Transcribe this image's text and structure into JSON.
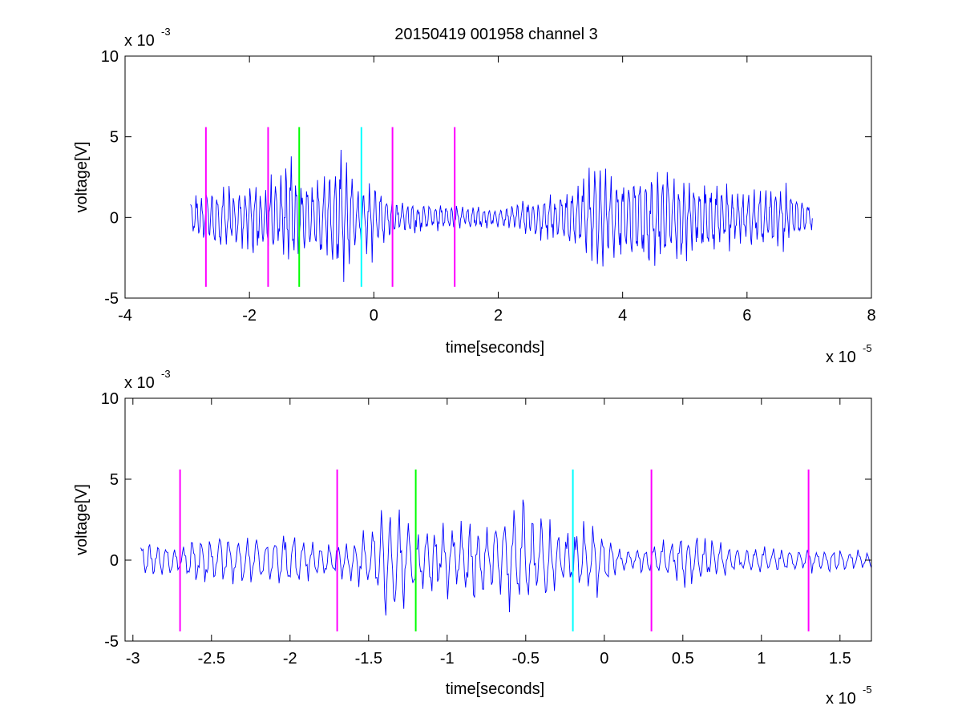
{
  "figure": {
    "title": "20150419 001958 channel 3",
    "colors": {
      "trace": "#0000ff",
      "magenta": "#ff00ff",
      "green": "#00ff00",
      "cyan": "#00ffff",
      "axes": "#000000",
      "background": "#ffffff"
    }
  },
  "chart_data": [
    {
      "type": "line",
      "title": "20150419 001958 channel 3",
      "xlabel": "time[seconds]",
      "ylabel": "voltage[V]",
      "x_multiplier": "x 10",
      "x_exponent": "-5",
      "y_multiplier": "x 10",
      "y_exponent": "-3",
      "xlim": [
        -4,
        8
      ],
      "ylim": [
        -5,
        10
      ],
      "x_ticks": [
        -4,
        -2,
        0,
        2,
        4,
        6,
        8
      ],
      "x_tick_labels": [
        "-4",
        "-2",
        "0",
        "2",
        "4",
        "6",
        "8"
      ],
      "y_ticks": [
        -5,
        0,
        5,
        10
      ],
      "y_tick_labels": [
        "-5",
        "0",
        "5",
        "10"
      ],
      "grid": false,
      "series": [
        {
          "color": "#0000ff",
          "x_range": [
            -2.95,
            7.05
          ],
          "envelope_points": [
            [
              -2.95,
              1.5
            ],
            [
              -2.7,
              2.0
            ],
            [
              -2.5,
              2.2
            ],
            [
              -2.2,
              2.2
            ],
            [
              -2.0,
              2.3
            ],
            [
              -1.8,
              2.5
            ],
            [
              -1.5,
              3.0
            ],
            [
              -1.35,
              5.0
            ],
            [
              -1.2,
              2.5
            ],
            [
              -0.9,
              2.8
            ],
            [
              -0.7,
              3.2
            ],
            [
              -0.5,
              4.4
            ],
            [
              -0.3,
              2.5
            ],
            [
              -0.2,
              2.2
            ],
            [
              0.0,
              3.0
            ],
            [
              0.2,
              1.5
            ],
            [
              0.5,
              1.2
            ],
            [
              1.0,
              1.0
            ],
            [
              1.5,
              0.8
            ],
            [
              2.0,
              0.8
            ],
            [
              2.5,
              1.3
            ],
            [
              3.0,
              1.8
            ],
            [
              3.3,
              2.5
            ],
            [
              3.6,
              4.1
            ],
            [
              4.0,
              3.0
            ],
            [
              4.5,
              3.5
            ],
            [
              5.0,
              2.8
            ],
            [
              5.5,
              2.2
            ],
            [
              6.0,
              2.0
            ],
            [
              6.5,
              2.5
            ],
            [
              7.05,
              1.0
            ]
          ]
        }
      ],
      "markers": [
        {
          "x": -2.7,
          "color": "#ff00ff",
          "y_range": [
            -4.3,
            5.6
          ]
        },
        {
          "x": -1.7,
          "color": "#ff00ff",
          "y_range": [
            -4.3,
            5.6
          ]
        },
        {
          "x": -1.2,
          "color": "#00ff00",
          "y_range": [
            -4.3,
            5.6
          ]
        },
        {
          "x": -0.2,
          "color": "#00ffff",
          "y_range": [
            -4.3,
            5.6
          ]
        },
        {
          "x": 0.3,
          "color": "#ff00ff",
          "y_range": [
            -4.3,
            5.6
          ]
        },
        {
          "x": 1.3,
          "color": "#ff00ff",
          "y_range": [
            -4.3,
            5.6
          ]
        }
      ]
    },
    {
      "type": "line",
      "title": "",
      "xlabel": "time[seconds]",
      "ylabel": "voltage[V]",
      "x_multiplier": "x 10",
      "x_exponent": "-5",
      "y_multiplier": "x 10",
      "y_exponent": "-3",
      "xlim": [
        -3.05,
        1.7
      ],
      "ylim": [
        -5,
        10
      ],
      "x_ticks": [
        -3,
        -2.5,
        -2,
        -1.5,
        -1,
        -0.5,
        0,
        0.5,
        1,
        1.5
      ],
      "x_tick_labels": [
        "-3",
        "-2.5",
        "-2",
        "-1.5",
        "-1",
        "-0.5",
        "0",
        "0.5",
        "1",
        "1.5"
      ],
      "y_ticks": [
        -5,
        0,
        5,
        10
      ],
      "y_tick_labels": [
        "-5",
        "0",
        "5",
        "10"
      ],
      "grid": false,
      "series": [
        {
          "color": "#0000ff",
          "x_range": [
            -2.95,
            1.7
          ],
          "envelope_points": [
            [
              -2.95,
              1.5
            ],
            [
              -2.7,
              1.0
            ],
            [
              -2.6,
              1.8
            ],
            [
              -2.45,
              1.8
            ],
            [
              -2.2,
              1.8
            ],
            [
              -2.0,
              2.0
            ],
            [
              -1.8,
              1.2
            ],
            [
              -1.5,
              2.0
            ],
            [
              -1.38,
              5.0
            ],
            [
              -1.2,
              2.2
            ],
            [
              -1.0,
              2.3
            ],
            [
              -0.8,
              2.6
            ],
            [
              -0.6,
              3.2
            ],
            [
              -0.53,
              4.4
            ],
            [
              -0.35,
              2.5
            ],
            [
              -0.2,
              2.4
            ],
            [
              -0.05,
              2.9
            ],
            [
              0.1,
              0.8
            ],
            [
              0.3,
              1.0
            ],
            [
              0.5,
              1.8
            ],
            [
              0.6,
              1.9
            ],
            [
              0.8,
              1.0
            ],
            [
              1.0,
              0.9
            ],
            [
              1.3,
              0.8
            ],
            [
              1.5,
              0.8
            ],
            [
              1.7,
              0.6
            ]
          ]
        }
      ],
      "markers": [
        {
          "x": -2.7,
          "color": "#ff00ff",
          "y_range": [
            -4.4,
            5.6
          ]
        },
        {
          "x": -1.7,
          "color": "#ff00ff",
          "y_range": [
            -4.4,
            5.6
          ]
        },
        {
          "x": -1.2,
          "color": "#00ff00",
          "y_range": [
            -4.4,
            5.6
          ]
        },
        {
          "x": -0.2,
          "color": "#00ffff",
          "y_range": [
            -4.4,
            5.6
          ]
        },
        {
          "x": 0.3,
          "color": "#ff00ff",
          "y_range": [
            -4.4,
            5.6
          ]
        },
        {
          "x": 1.3,
          "color": "#ff00ff",
          "y_range": [
            -4.4,
            5.6
          ]
        }
      ]
    }
  ]
}
